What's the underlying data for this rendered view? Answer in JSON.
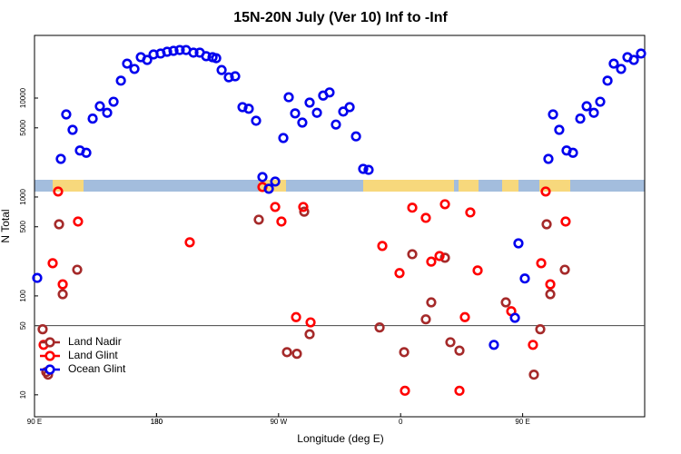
{
  "chart_data": {
    "type": "scatter",
    "title": "15N-20N July (Ver 10)   Inf to -Inf",
    "x_label": "Longitude (deg E)",
    "y_label": "N Total",
    "log_y": true,
    "xlim": [
      90,
      540
    ],
    "ylim": [
      6,
      43000
    ],
    "xticks": [
      {
        "value": 90,
        "label": "90 E"
      },
      180,
      {
        "value": 270,
        "label": "90 W"
      },
      {
        "value": 360,
        "label": "0"
      },
      {
        "value": 450,
        "label": "90 E"
      },
      180
    ],
    "yticks": [
      10,
      50,
      100,
      500,
      1000,
      5000,
      10000
    ],
    "reference_line": 50,
    "legend": "bottom-left",
    "series": [
      {
        "name": "Land Nadir",
        "color": "#a52a2a",
        "x": [
          96,
          98.7,
          100,
          108.1,
          110.8,
          121.5,
          255.4,
          276.2,
          283.5,
          288.9,
          292.9,
          344.5,
          362.6,
          368.6,
          378.6,
          382.6,
          392.7,
          396.7,
          403.4,
          437.6,
          458.3,
          463,
          467.7,
          470.4,
          481.1
        ],
        "values": [
          46,
          17,
          16,
          530,
          104,
          184,
          590,
          27,
          26,
          710,
          41,
          48,
          27,
          264,
          58,
          86,
          243,
          34,
          28,
          86,
          16,
          46,
          530,
          104,
          184
        ]
      },
      {
        "name": "Land Glint",
        "color": "#ff0000",
        "x": [
          96.7,
          103.4,
          107.4,
          110.8,
          122.1,
          204.5,
          258.1,
          267.5,
          272.1,
          282.9,
          288.2,
          293.6,
          346.5,
          359.2,
          363.2,
          368.6,
          378.6,
          382.6,
          388.7,
          392.7,
          403.4,
          407.4,
          411.4,
          416.8,
          441.6,
          457.6,
          463.7,
          467,
          470.4,
          481.7
        ],
        "values": [
          32,
          214,
          1136,
          131,
          565,
          348,
          1262,
          793,
          565,
          61,
          793,
          54,
          320,
          170,
          11,
          780,
          615,
          222,
          253,
          845,
          11,
          61,
          698,
          181,
          70,
          32,
          214,
          1136,
          131,
          565
        ]
      },
      {
        "name": "Ocean Glint",
        "color": "#0000ee",
        "x": [
          92,
          109.4,
          113.4,
          118.1,
          123.5,
          128.2,
          132.9,
          138.2,
          143.6,
          148.3,
          153.7,
          158.3,
          163.7,
          168.4,
          173.1,
          177.8,
          183,
          187.8,
          192.5,
          197.1,
          201.8,
          207.2,
          211.9,
          216.6,
          221.3,
          224,
          228,
          233.3,
          238,
          243.4,
          248,
          253.4,
          258.1,
          262.8,
          267.5,
          273.5,
          277.5,
          282.2,
          287.5,
          292.9,
          298.3,
          302.9,
          307.6,
          312.3,
          317.7,
          322.4,
          327.1,
          332.4,
          336.4,
          428.8,
          444.3,
          446.9,
          451.6,
          469,
          472.4,
          477,
          482.4,
          487.1,
          492.5,
          497.2,
          502.5,
          507.2,
          512.6,
          517.2,
          522.6,
          527.3,
          532,
          537.3
        ],
        "values": [
          152,
          2426,
          6834,
          4773,
          2950,
          2800,
          6200,
          8265,
          7100,
          9183,
          15000,
          22300,
          19700,
          25900,
          24300,
          27600,
          28200,
          29400,
          30000,
          30600,
          30600,
          28800,
          28800,
          26500,
          25900,
          25300,
          19200,
          16200,
          16600,
          8100,
          7800,
          5900,
          1592,
          1211,
          1432,
          3947,
          10200,
          7000,
          5650,
          9000,
          7100,
          10600,
          11400,
          5400,
          7300,
          8100,
          4100,
          1924,
          1880,
          32,
          60,
          340,
          150,
          2426,
          6834,
          4773,
          2950,
          2800,
          6200,
          8265,
          7100,
          9183,
          15000,
          22300,
          19700,
          25900,
          24300,
          28200
        ]
      }
    ]
  }
}
